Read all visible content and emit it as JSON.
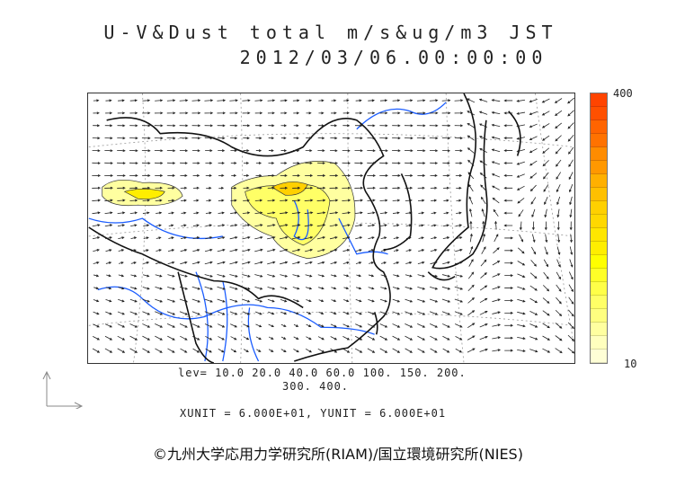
{
  "title": {
    "line1": "U-V&Dust total m/s&ug/m3 JST",
    "line2": "2012/03/06.00:00:00"
  },
  "colorbar": {
    "max_label": "400",
    "min_label": "10",
    "colors": [
      "#ff4400",
      "#ff5000",
      "#ff6400",
      "#ff7200",
      "#ff8c00",
      "#ff9800",
      "#ffb000",
      "#ffc000",
      "#ffd000",
      "#ffd800",
      "#ffe600",
      "#ffee00",
      "#ffff00",
      "#ffff28",
      "#ffff48",
      "#ffff66",
      "#ffff80",
      "#ffffa0",
      "#ffffbe",
      "#ffffd6"
    ]
  },
  "legend": {
    "levels_line1": "lev= 10.0 20.0 40.0 60.0 100. 150. 200.",
    "levels_line2": "300. 400.",
    "units": "XUNIT = 6.000E+01, YUNIT = 6.000E+01"
  },
  "copyright": "©九州大学応用力学研究所(RIAM)/国立環境研究所(NIES)",
  "colors": {
    "coast": "#111111",
    "rivers": "#1a5cff",
    "grid": "#999999",
    "arrows": "#222222"
  }
}
